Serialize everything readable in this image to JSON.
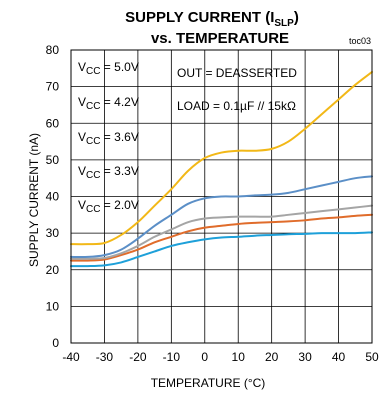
{
  "chart_data": {
    "type": "line",
    "title_main": "SUPPLY CURRENT (I",
    "title_sub": "SLP",
    "title_close": ")",
    "title_line2": "vs. TEMPERATURE",
    "figure_tag": "toc03",
    "xlabel": "TEMPERATURE (°C)",
    "ylabel": "SUPPLY CURRENT (nA)",
    "xlim": [
      -40,
      50
    ],
    "ylim": [
      0,
      80
    ],
    "xticks": [
      -40,
      -30,
      -20,
      -10,
      0,
      10,
      20,
      30,
      40,
      50
    ],
    "yticks": [
      0,
      10,
      20,
      30,
      40,
      50,
      60,
      70,
      80
    ],
    "grid": true,
    "series": [
      {
        "name": "VCC = 5.0V",
        "color": "#f2b817",
        "points": [
          [
            -40,
            27
          ],
          [
            -35,
            27
          ],
          [
            -30,
            27.3
          ],
          [
            -25,
            29.5
          ],
          [
            -20,
            33
          ],
          [
            -15,
            37.5
          ],
          [
            -10,
            42
          ],
          [
            -5,
            47
          ],
          [
            0,
            50.5
          ],
          [
            5,
            52
          ],
          [
            10,
            52.5
          ],
          [
            15,
            52.5
          ],
          [
            20,
            53
          ],
          [
            25,
            55
          ],
          [
            30,
            58.5
          ],
          [
            35,
            62.5
          ],
          [
            40,
            66.5
          ],
          [
            45,
            70.5
          ],
          [
            50,
            74
          ]
        ]
      },
      {
        "name": "VCC = 4.2V",
        "color": "#5b8fc7",
        "points": [
          [
            -40,
            23.5
          ],
          [
            -35,
            23.5
          ],
          [
            -30,
            24
          ],
          [
            -25,
            25.5
          ],
          [
            -20,
            28.5
          ],
          [
            -15,
            32
          ],
          [
            -10,
            35
          ],
          [
            -5,
            38
          ],
          [
            0,
            39.5
          ],
          [
            5,
            40
          ],
          [
            10,
            40
          ],
          [
            15,
            40.3
          ],
          [
            20,
            40.5
          ],
          [
            25,
            41
          ],
          [
            30,
            42
          ],
          [
            35,
            43
          ],
          [
            40,
            44
          ],
          [
            45,
            45
          ],
          [
            50,
            45.5
          ]
        ]
      },
      {
        "name": "VCC = 3.6V",
        "color": "#a5a5a5",
        "points": [
          [
            -40,
            23
          ],
          [
            -35,
            23
          ],
          [
            -30,
            23.2
          ],
          [
            -25,
            24.5
          ],
          [
            -20,
            26.5
          ],
          [
            -15,
            29
          ],
          [
            -10,
            31
          ],
          [
            -5,
            33
          ],
          [
            0,
            34
          ],
          [
            5,
            34.3
          ],
          [
            10,
            34.5
          ],
          [
            15,
            34.5
          ],
          [
            20,
            34.5
          ],
          [
            25,
            35
          ],
          [
            30,
            35.5
          ],
          [
            35,
            36
          ],
          [
            40,
            36.5
          ],
          [
            45,
            37
          ],
          [
            50,
            37.5
          ]
        ]
      },
      {
        "name": "VCC = 3.3V",
        "color": "#e06c2b",
        "points": [
          [
            -40,
            22.5
          ],
          [
            -35,
            22.5
          ],
          [
            -30,
            22.8
          ],
          [
            -25,
            24
          ],
          [
            -20,
            25.5
          ],
          [
            -15,
            27.5
          ],
          [
            -10,
            29
          ],
          [
            -5,
            30.5
          ],
          [
            0,
            31.5
          ],
          [
            5,
            32
          ],
          [
            10,
            32.5
          ],
          [
            15,
            32.8
          ],
          [
            20,
            33
          ],
          [
            25,
            33.2
          ],
          [
            30,
            33.5
          ],
          [
            35,
            34
          ],
          [
            40,
            34.3
          ],
          [
            45,
            34.7
          ],
          [
            50,
            35
          ]
        ]
      },
      {
        "name": "VCC = 2.0V",
        "color": "#1ea0d9",
        "points": [
          [
            -40,
            21
          ],
          [
            -35,
            21
          ],
          [
            -30,
            21.2
          ],
          [
            -25,
            22
          ],
          [
            -20,
            23.5
          ],
          [
            -15,
            25
          ],
          [
            -10,
            26.5
          ],
          [
            -5,
            27.5
          ],
          [
            0,
            28.3
          ],
          [
            5,
            28.8
          ],
          [
            10,
            29
          ],
          [
            15,
            29.3
          ],
          [
            20,
            29.5
          ],
          [
            25,
            29.7
          ],
          [
            30,
            29.8
          ],
          [
            35,
            30
          ],
          [
            40,
            30
          ],
          [
            45,
            30
          ],
          [
            50,
            30.2
          ]
        ]
      }
    ],
    "legend_labels": [
      {
        "pre": "V",
        "sub": "CC",
        "post": " = 5.0V"
      },
      {
        "pre": "V",
        "sub": "CC",
        "post": " = 4.2V"
      },
      {
        "pre": "V",
        "sub": "CC",
        "post": " = 3.6V"
      },
      {
        "pre": "V",
        "sub": "CC",
        "post": " = 3.3V"
      },
      {
        "pre": "V",
        "sub": "CC",
        "post": " = 2.0V"
      }
    ],
    "annotations": [
      "OUT = DEASSERTED",
      "LOAD = 0.1µF // 15kΩ"
    ]
  }
}
